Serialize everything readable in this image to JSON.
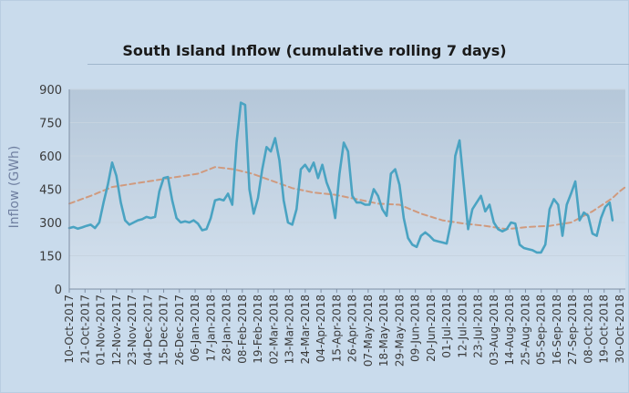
{
  "chart_data": {
    "type": "line",
    "title": "South Island Inflow (cumulative rolling 7 days)",
    "xlabel": "",
    "ylabel": "Inflow (GWh)",
    "ylim": [
      0,
      900
    ],
    "yticks": [
      0,
      150,
      300,
      450,
      600,
      750,
      900
    ],
    "grid": true,
    "x_tick_labels": [
      "10-Oct-2017",
      "21-Oct-2017",
      "01-Nov-2017",
      "12-Nov-2017",
      "23-Nov-2017",
      "04-Dec-2017",
      "15-Dec-2017",
      "26-Dec-2017",
      "06-Jan-2018",
      "17-Jan-2018",
      "28-Jan-2018",
      "08-Feb-2018",
      "19-Feb-2018",
      "02-Mar-2018",
      "13-Mar-2018",
      "24-Mar-2018",
      "04-Apr-2018",
      "15-Apr-2018",
      "26-Apr-2018",
      "07-May-2018",
      "18-May-2018",
      "29-May-2018",
      "09-Jun-2018",
      "20-Jun-2018",
      "01-Jul-2018",
      "12-Jul-2018",
      "23-Jul-2018",
      "03-Aug-2018",
      "14-Aug-2018",
      "25-Aug-2018",
      "05-Sep-2018",
      "16-Sep-2018",
      "27-Sep-2018",
      "08-Oct-2018",
      "19-Oct-2018",
      "30-Oct-2018"
    ],
    "x_start": "2017-10-10",
    "series": [
      {
        "name": "",
        "style": "solid",
        "color": "#4aa3c2",
        "points": [
          [
            "2017-10-10",
            275
          ],
          [
            "2017-10-13",
            280
          ],
          [
            "2017-10-16",
            272
          ],
          [
            "2017-10-19",
            278
          ],
          [
            "2017-10-22",
            285
          ],
          [
            "2017-10-25",
            290
          ],
          [
            "2017-10-28",
            275
          ],
          [
            "2017-10-31",
            300
          ],
          [
            "2017-11-03",
            390
          ],
          [
            "2017-11-06",
            470
          ],
          [
            "2017-11-09",
            570
          ],
          [
            "2017-11-12",
            510
          ],
          [
            "2017-11-15",
            390
          ],
          [
            "2017-11-18",
            310
          ],
          [
            "2017-11-21",
            290
          ],
          [
            "2017-11-24",
            300
          ],
          [
            "2017-11-27",
            310
          ],
          [
            "2017-11-30",
            315
          ],
          [
            "2017-12-03",
            325
          ],
          [
            "2017-12-06",
            320
          ],
          [
            "2017-12-09",
            325
          ],
          [
            "2017-12-12",
            440
          ],
          [
            "2017-12-15",
            500
          ],
          [
            "2017-12-18",
            505
          ],
          [
            "2017-12-21",
            400
          ],
          [
            "2017-12-24",
            320
          ],
          [
            "2017-12-27",
            300
          ],
          [
            "2017-12-30",
            305
          ],
          [
            "2018-01-02",
            300
          ],
          [
            "2018-01-05",
            310
          ],
          [
            "2018-01-08",
            295
          ],
          [
            "2018-01-11",
            265
          ],
          [
            "2018-01-14",
            270
          ],
          [
            "2018-01-17",
            320
          ],
          [
            "2018-01-20",
            400
          ],
          [
            "2018-01-23",
            405
          ],
          [
            "2018-01-26",
            400
          ],
          [
            "2018-01-29",
            430
          ],
          [
            "2018-02-01",
            380
          ],
          [
            "2018-02-04",
            660
          ],
          [
            "2018-02-07",
            840
          ],
          [
            "2018-02-10",
            830
          ],
          [
            "2018-02-13",
            450
          ],
          [
            "2018-02-16",
            340
          ],
          [
            "2018-02-19",
            410
          ],
          [
            "2018-02-22",
            540
          ],
          [
            "2018-02-25",
            640
          ],
          [
            "2018-02-28",
            620
          ],
          [
            "2018-03-03",
            680
          ],
          [
            "2018-03-06",
            580
          ],
          [
            "2018-03-09",
            400
          ],
          [
            "2018-03-12",
            300
          ],
          [
            "2018-03-15",
            290
          ],
          [
            "2018-03-18",
            360
          ],
          [
            "2018-03-21",
            540
          ],
          [
            "2018-03-24",
            560
          ],
          [
            "2018-03-27",
            530
          ],
          [
            "2018-03-30",
            570
          ],
          [
            "2018-04-02",
            500
          ],
          [
            "2018-04-05",
            560
          ],
          [
            "2018-04-08",
            480
          ],
          [
            "2018-04-11",
            430
          ],
          [
            "2018-04-14",
            320
          ],
          [
            "2018-04-17",
            520
          ],
          [
            "2018-04-20",
            660
          ],
          [
            "2018-04-23",
            620
          ],
          [
            "2018-04-26",
            420
          ],
          [
            "2018-04-29",
            390
          ],
          [
            "2018-05-02",
            390
          ],
          [
            "2018-05-05",
            380
          ],
          [
            "2018-05-08",
            380
          ],
          [
            "2018-05-11",
            450
          ],
          [
            "2018-05-14",
            420
          ],
          [
            "2018-05-17",
            360
          ],
          [
            "2018-05-20",
            330
          ],
          [
            "2018-05-23",
            520
          ],
          [
            "2018-05-26",
            540
          ],
          [
            "2018-05-29",
            470
          ],
          [
            "2018-06-01",
            320
          ],
          [
            "2018-06-04",
            230
          ],
          [
            "2018-06-07",
            200
          ],
          [
            "2018-06-10",
            190
          ],
          [
            "2018-06-13",
            240
          ],
          [
            "2018-06-16",
            255
          ],
          [
            "2018-06-19",
            240
          ],
          [
            "2018-06-22",
            220
          ],
          [
            "2018-06-25",
            215
          ],
          [
            "2018-06-28",
            210
          ],
          [
            "2018-07-01",
            205
          ],
          [
            "2018-07-04",
            300
          ],
          [
            "2018-07-07",
            600
          ],
          [
            "2018-07-10",
            670
          ],
          [
            "2018-07-13",
            470
          ],
          [
            "2018-07-16",
            270
          ],
          [
            "2018-07-19",
            360
          ],
          [
            "2018-07-22",
            390
          ],
          [
            "2018-07-25",
            420
          ],
          [
            "2018-07-28",
            350
          ],
          [
            "2018-07-31",
            380
          ],
          [
            "2018-08-03",
            300
          ],
          [
            "2018-08-06",
            270
          ],
          [
            "2018-08-09",
            260
          ],
          [
            "2018-08-12",
            270
          ],
          [
            "2018-08-15",
            300
          ],
          [
            "2018-08-18",
            295
          ],
          [
            "2018-08-21",
            200
          ],
          [
            "2018-08-24",
            185
          ],
          [
            "2018-08-27",
            180
          ],
          [
            "2018-08-30",
            175
          ],
          [
            "2018-09-02",
            165
          ],
          [
            "2018-09-05",
            165
          ],
          [
            "2018-09-08",
            200
          ],
          [
            "2018-09-11",
            360
          ],
          [
            "2018-09-14",
            405
          ],
          [
            "2018-09-17",
            380
          ],
          [
            "2018-09-20",
            240
          ],
          [
            "2018-09-23",
            380
          ],
          [
            "2018-09-26",
            430
          ],
          [
            "2018-09-29",
            485
          ],
          [
            "2018-10-02",
            310
          ],
          [
            "2018-10-05",
            345
          ],
          [
            "2018-10-08",
            330
          ],
          [
            "2018-10-11",
            250
          ],
          [
            "2018-10-14",
            240
          ],
          [
            "2018-10-17",
            320
          ],
          [
            "2018-10-20",
            370
          ],
          [
            "2018-10-23",
            390
          ],
          [
            "2018-10-25",
            310
          ]
        ]
      },
      {
        "name": "",
        "style": "dashed",
        "color": "#d09a7e",
        "points": [
          [
            "2017-10-10",
            385
          ],
          [
            "2017-10-25",
            420
          ],
          [
            "2017-11-09",
            460
          ],
          [
            "2017-11-24",
            475
          ],
          [
            "2017-12-09",
            490
          ],
          [
            "2017-12-24",
            505
          ],
          [
            "2018-01-08",
            520
          ],
          [
            "2018-01-20",
            550
          ],
          [
            "2018-02-02",
            540
          ],
          [
            "2018-02-15",
            520
          ],
          [
            "2018-02-28",
            490
          ],
          [
            "2018-03-15",
            455
          ],
          [
            "2018-03-30",
            435
          ],
          [
            "2018-04-14",
            425
          ],
          [
            "2018-04-29",
            405
          ],
          [
            "2018-05-14",
            385
          ],
          [
            "2018-05-29",
            380
          ],
          [
            "2018-06-13",
            340
          ],
          [
            "2018-06-28",
            310
          ],
          [
            "2018-07-13",
            295
          ],
          [
            "2018-07-28",
            285
          ],
          [
            "2018-08-12",
            270
          ],
          [
            "2018-08-27",
            280
          ],
          [
            "2018-09-11",
            285
          ],
          [
            "2018-09-26",
            300
          ],
          [
            "2018-10-11",
            350
          ],
          [
            "2018-10-25",
            410
          ],
          [
            "2018-10-30",
            440
          ],
          [
            "2018-11-03",
            460
          ]
        ]
      }
    ]
  }
}
